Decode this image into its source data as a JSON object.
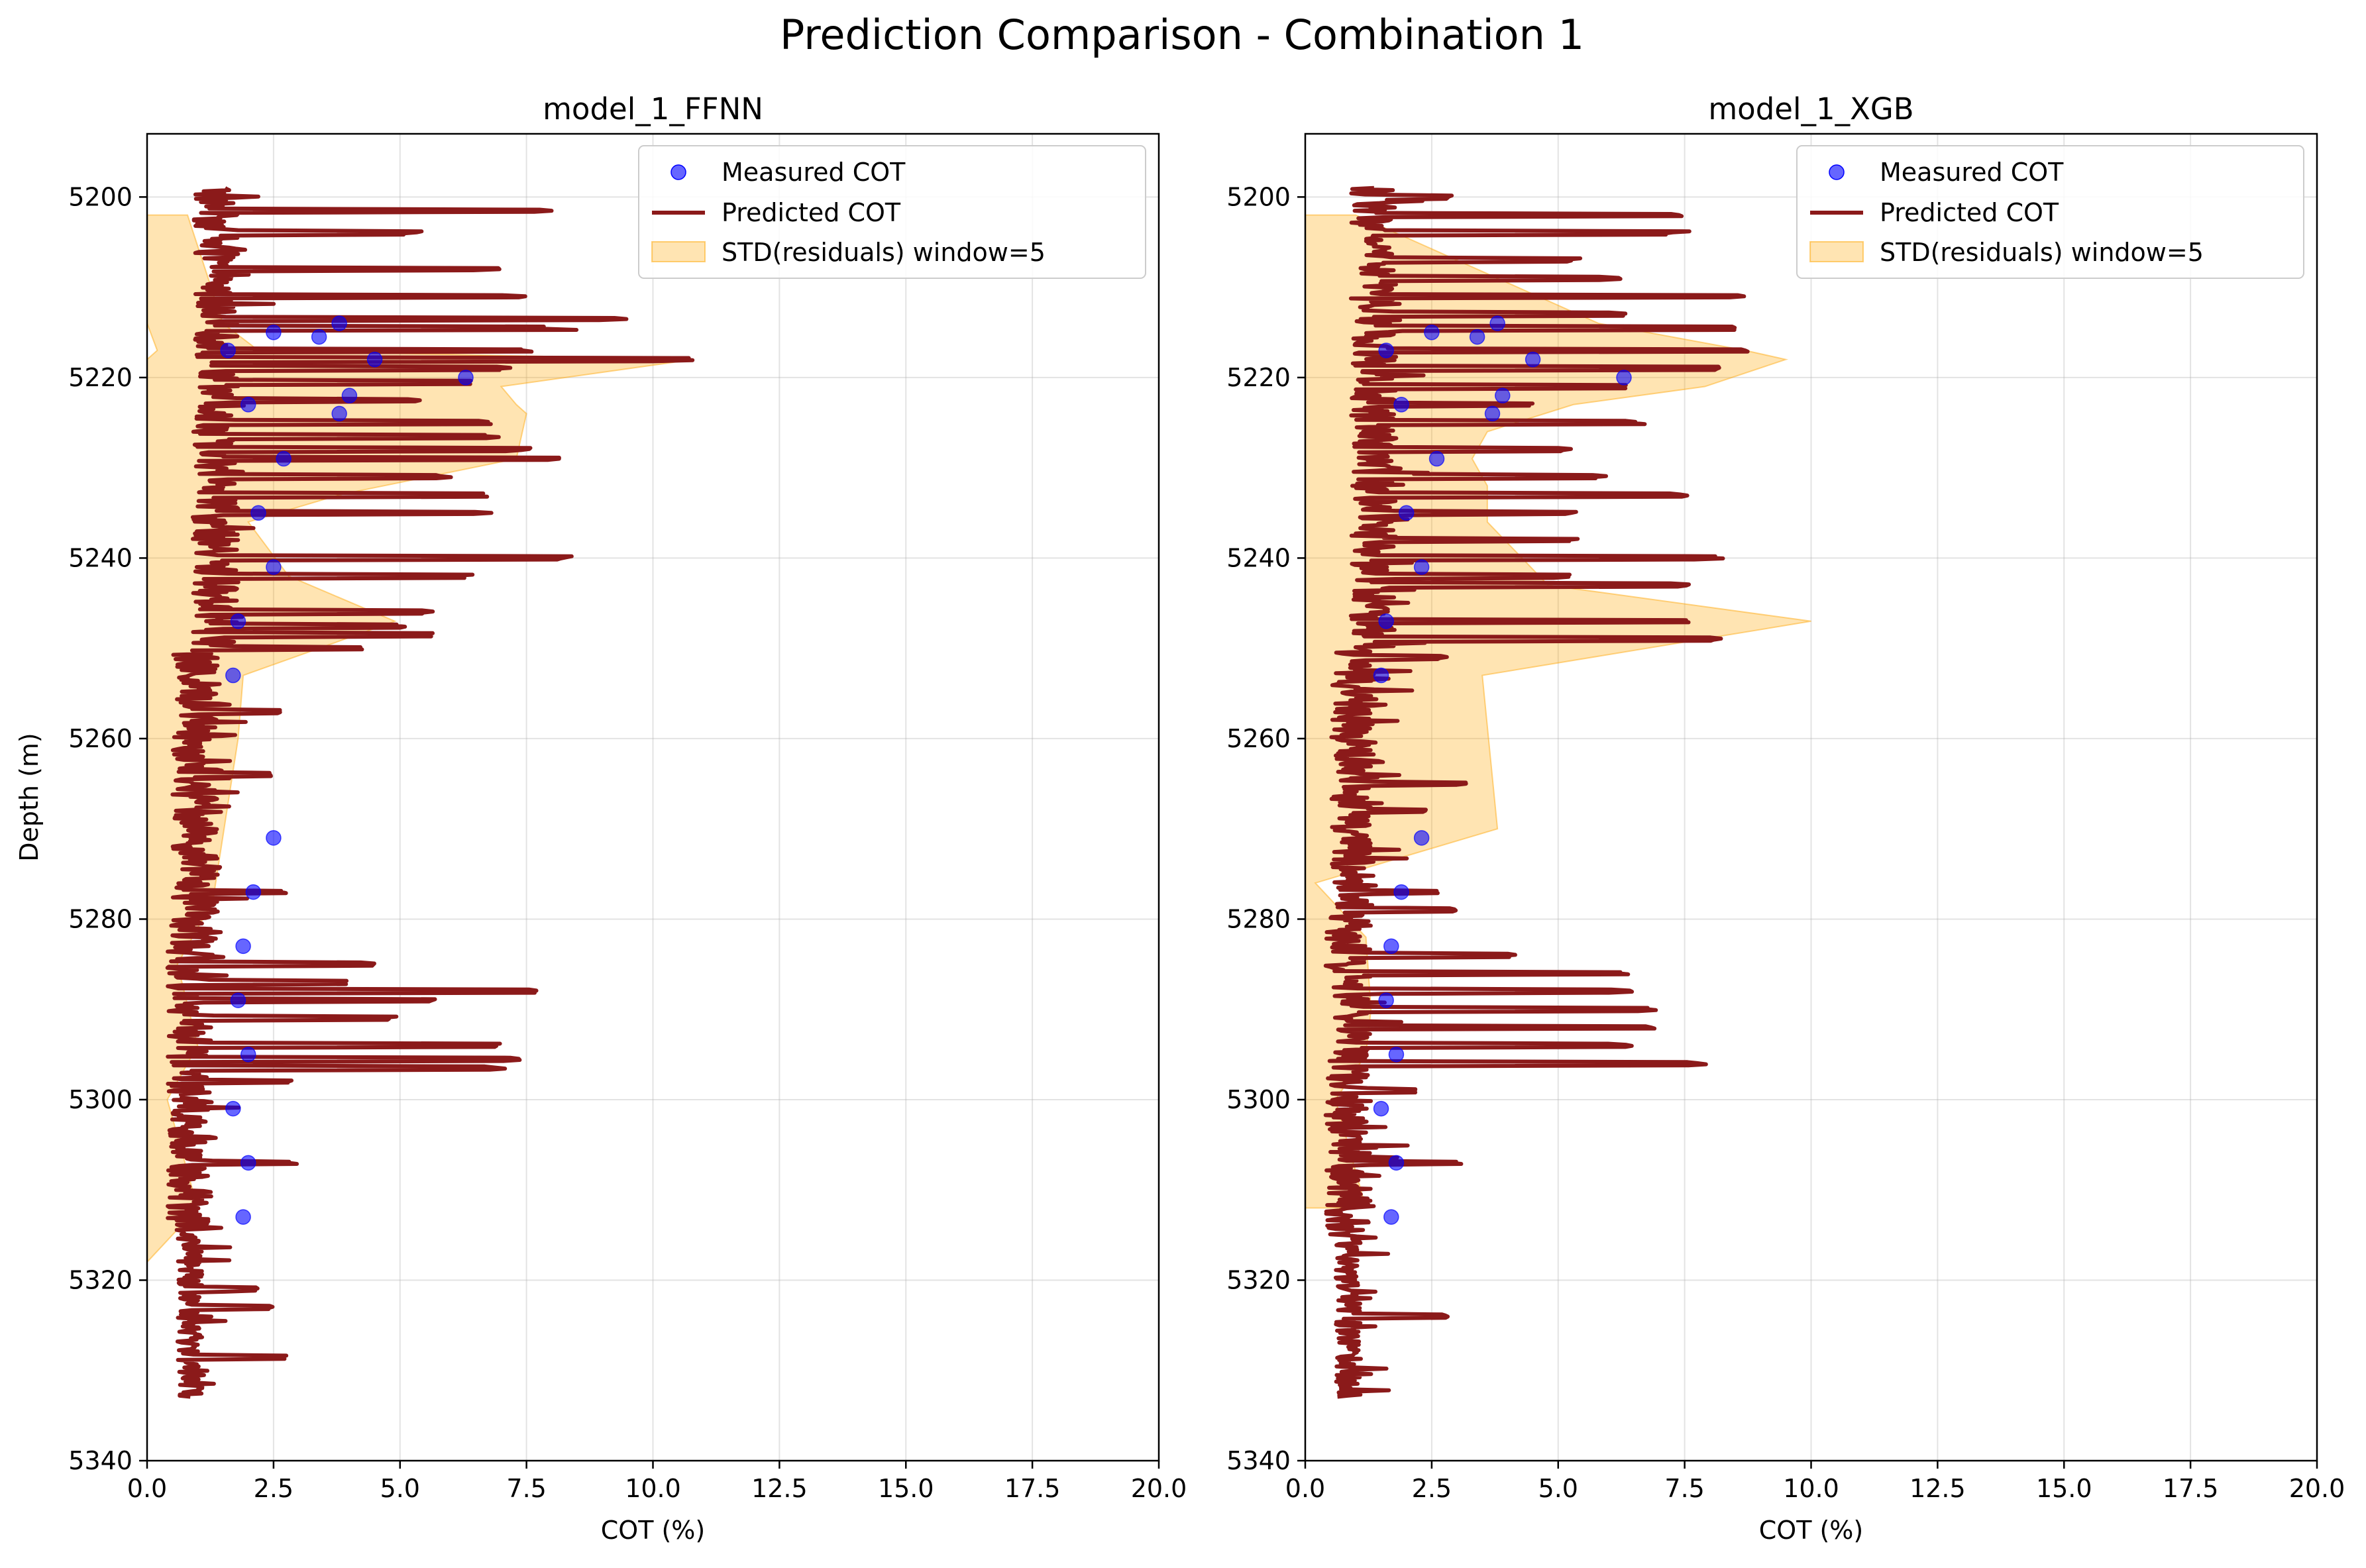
{
  "figure": {
    "suptitle": "Prediction Comparison - Combination 1"
  },
  "legend": {
    "measured": "Measured COT",
    "predicted": "Predicted COT",
    "band": "STD(residuals) window=5"
  },
  "colors": {
    "measured": "#0000ff",
    "predicted": "#8b1a1a",
    "band": "#ffa500",
    "grid": "#b0b0b0"
  },
  "chart_data": [
    {
      "type": "line",
      "title": "model_1_FFNN",
      "xlabel": "COT (%)",
      "ylabel": "Depth (m)",
      "xlim": [
        0,
        20
      ],
      "ylim": [
        5340,
        5193
      ],
      "y_inverted": true,
      "grid": true,
      "legend_position": "top-right",
      "x_ticks": [
        "0.0",
        "2.5",
        "5.0",
        "7.5",
        "10.0",
        "12.5",
        "15.0",
        "17.5",
        "20.0"
      ],
      "y_ticks": [
        "5200",
        "5220",
        "5240",
        "5260",
        "5280",
        "5300",
        "5320",
        "5340"
      ],
      "measured": {
        "name": "Measured COT",
        "depth": [
          5214,
          5215,
          5215.5,
          5217,
          5218,
          5220,
          5222,
          5223,
          5224,
          5229,
          5235,
          5241,
          5247,
          5253,
          5271,
          5277,
          5283,
          5289,
          5295,
          5301,
          5307,
          5313
        ],
        "cot": [
          3.8,
          2.5,
          3.4,
          1.6,
          4.5,
          6.3,
          4.0,
          2.0,
          3.8,
          2.7,
          2.2,
          2.5,
          1.8,
          1.7,
          2.5,
          2.1,
          1.9,
          1.8,
          2.0,
          1.7,
          2.0,
          1.9
        ]
      },
      "predicted": {
        "name": "Predicted COT",
        "depth_range": [
          5199,
          5333
        ],
        "spikes": [
          [
            5201.5,
            8.0
          ],
          [
            5204,
            5.5
          ],
          [
            5208,
            7.0
          ],
          [
            5211,
            7.5
          ],
          [
            5213.5,
            9.5
          ],
          [
            5214.5,
            8.5
          ],
          [
            5217,
            8.0
          ],
          [
            5218,
            10.8
          ],
          [
            5219,
            7.2
          ],
          [
            5220.5,
            6.5
          ],
          [
            5222.5,
            5.5
          ],
          [
            5225,
            6.8
          ],
          [
            5226.5,
            7.0
          ],
          [
            5228,
            7.7
          ],
          [
            5229,
            8.3
          ],
          [
            5231,
            6.2
          ],
          [
            5233,
            6.8
          ],
          [
            5235,
            7.0
          ],
          [
            5240,
            8.7
          ],
          [
            5242,
            6.5
          ],
          [
            5246,
            5.7
          ],
          [
            5247.5,
            5.2
          ],
          [
            5248.5,
            5.8
          ],
          [
            5250,
            4.3
          ],
          [
            5257,
            2.8
          ],
          [
            5264,
            2.5
          ],
          [
            5277,
            2.8
          ],
          [
            5285,
            4.5
          ],
          [
            5287,
            4.0
          ],
          [
            5288,
            7.7
          ],
          [
            5289,
            5.9
          ],
          [
            5291,
            5.0
          ],
          [
            5294,
            7.0
          ],
          [
            5295.5,
            7.4
          ],
          [
            5296.5,
            7.2
          ],
          [
            5298,
            2.9
          ],
          [
            5307,
            3.0
          ],
          [
            5321,
            2.2
          ],
          [
            5323,
            2.5
          ],
          [
            5328.5,
            2.8
          ]
        ]
      },
      "band": {
        "name": "STD(residuals) window=5",
        "depth": [
          5202,
          5214,
          5217,
          5218,
          5221,
          5223,
          5224,
          5229,
          5233,
          5236,
          5242,
          5247,
          5253,
          5260,
          5278,
          5285,
          5294,
          5300,
          5312,
          5318
        ],
        "lower": [
          0.0,
          0.0,
          0.2,
          0.0,
          0.0,
          0.0,
          0.0,
          0.0,
          0.0,
          0.0,
          0.0,
          0.0,
          0.0,
          0.0,
          0.0,
          0.0,
          0.0,
          0.0,
          0.0,
          0.0
        ],
        "upper": [
          0.8,
          1.5,
          2.2,
          10.8,
          7.0,
          7.3,
          7.5,
          7.3,
          3.8,
          2.0,
          2.8,
          4.9,
          1.9,
          1.8,
          1.3,
          0.6,
          1.0,
          0.4,
          1.0,
          0.0
        ]
      }
    },
    {
      "type": "line",
      "title": "model_1_XGB",
      "xlabel": "COT (%)",
      "ylabel": "",
      "xlim": [
        0,
        20
      ],
      "ylim": [
        5340,
        5193
      ],
      "y_inverted": true,
      "grid": true,
      "legend_position": "top-right",
      "x_ticks": [
        "0.0",
        "2.5",
        "5.0",
        "7.5",
        "10.0",
        "12.5",
        "15.0",
        "17.5",
        "20.0"
      ],
      "y_ticks": [
        "5200",
        "5220",
        "5240",
        "5260",
        "5280",
        "5300",
        "5320",
        "5340"
      ],
      "measured": {
        "name": "Measured COT",
        "depth": [
          5214,
          5215,
          5215.5,
          5217,
          5218,
          5220,
          5222,
          5223,
          5224,
          5229,
          5235,
          5241,
          5247,
          5253,
          5271,
          5277,
          5283,
          5289,
          5295,
          5301,
          5307,
          5313
        ],
        "cot": [
          3.8,
          2.5,
          3.4,
          1.6,
          4.5,
          6.3,
          3.9,
          1.9,
          3.7,
          2.6,
          2.0,
          2.3,
          1.6,
          1.5,
          2.3,
          1.9,
          1.7,
          1.6,
          1.8,
          1.5,
          1.8,
          1.7
        ]
      },
      "predicted": {
        "name": "Predicted COT",
        "depth_range": [
          5199,
          5333
        ],
        "spikes": [
          [
            5200,
            2.9
          ],
          [
            5202,
            7.5
          ],
          [
            5204,
            7.7
          ],
          [
            5207,
            5.5
          ],
          [
            5209,
            6.3
          ],
          [
            5211,
            8.8
          ],
          [
            5213,
            6.5
          ],
          [
            5214.5,
            8.5
          ],
          [
            5217,
            9.0
          ],
          [
            5219,
            8.5
          ],
          [
            5221,
            6.5
          ],
          [
            5223,
            4.5
          ],
          [
            5225,
            6.8
          ],
          [
            5228,
            5.3
          ],
          [
            5231,
            6.0
          ],
          [
            5233,
            7.8
          ],
          [
            5235,
            5.5
          ],
          [
            5238,
            5.5
          ],
          [
            5240,
            8.3
          ],
          [
            5242,
            5.3
          ],
          [
            5243,
            7.7
          ],
          [
            5247,
            7.8
          ],
          [
            5249,
            8.5
          ],
          [
            5251,
            2.8
          ],
          [
            5265,
            3.2
          ],
          [
            5268,
            2.5
          ],
          [
            5277,
            2.8
          ],
          [
            5279,
            3.0
          ],
          [
            5284,
            4.2
          ],
          [
            5286,
            6.5
          ],
          [
            5288,
            6.5
          ],
          [
            5290,
            7.0
          ],
          [
            5292,
            7.3
          ],
          [
            5294,
            6.5
          ],
          [
            5296,
            8.2
          ],
          [
            5299,
            2.2
          ],
          [
            5307,
            3.1
          ],
          [
            5324,
            2.9
          ]
        ]
      },
      "band": {
        "name": "STD(residuals) window=5",
        "depth": [
          5202,
          5214,
          5217,
          5218,
          5221,
          5223,
          5226,
          5229,
          5232,
          5236,
          5243,
          5247,
          5253,
          5270,
          5276,
          5282,
          5290,
          5295,
          5300,
          5312
        ],
        "lower": [
          0.0,
          0.0,
          0.0,
          0.0,
          0.0,
          0.0,
          0.0,
          0.0,
          0.0,
          0.0,
          0.0,
          0.0,
          0.0,
          0.0,
          0.0,
          0.0,
          0.0,
          0.0,
          0.0,
          0.0
        ],
        "upper": [
          1.0,
          5.8,
          8.7,
          9.5,
          7.9,
          5.3,
          3.6,
          3.3,
          3.6,
          3.6,
          4.8,
          10.0,
          3.5,
          3.8,
          0.2,
          1.2,
          1.3,
          1.2,
          0.6,
          1.2
        ]
      }
    }
  ]
}
